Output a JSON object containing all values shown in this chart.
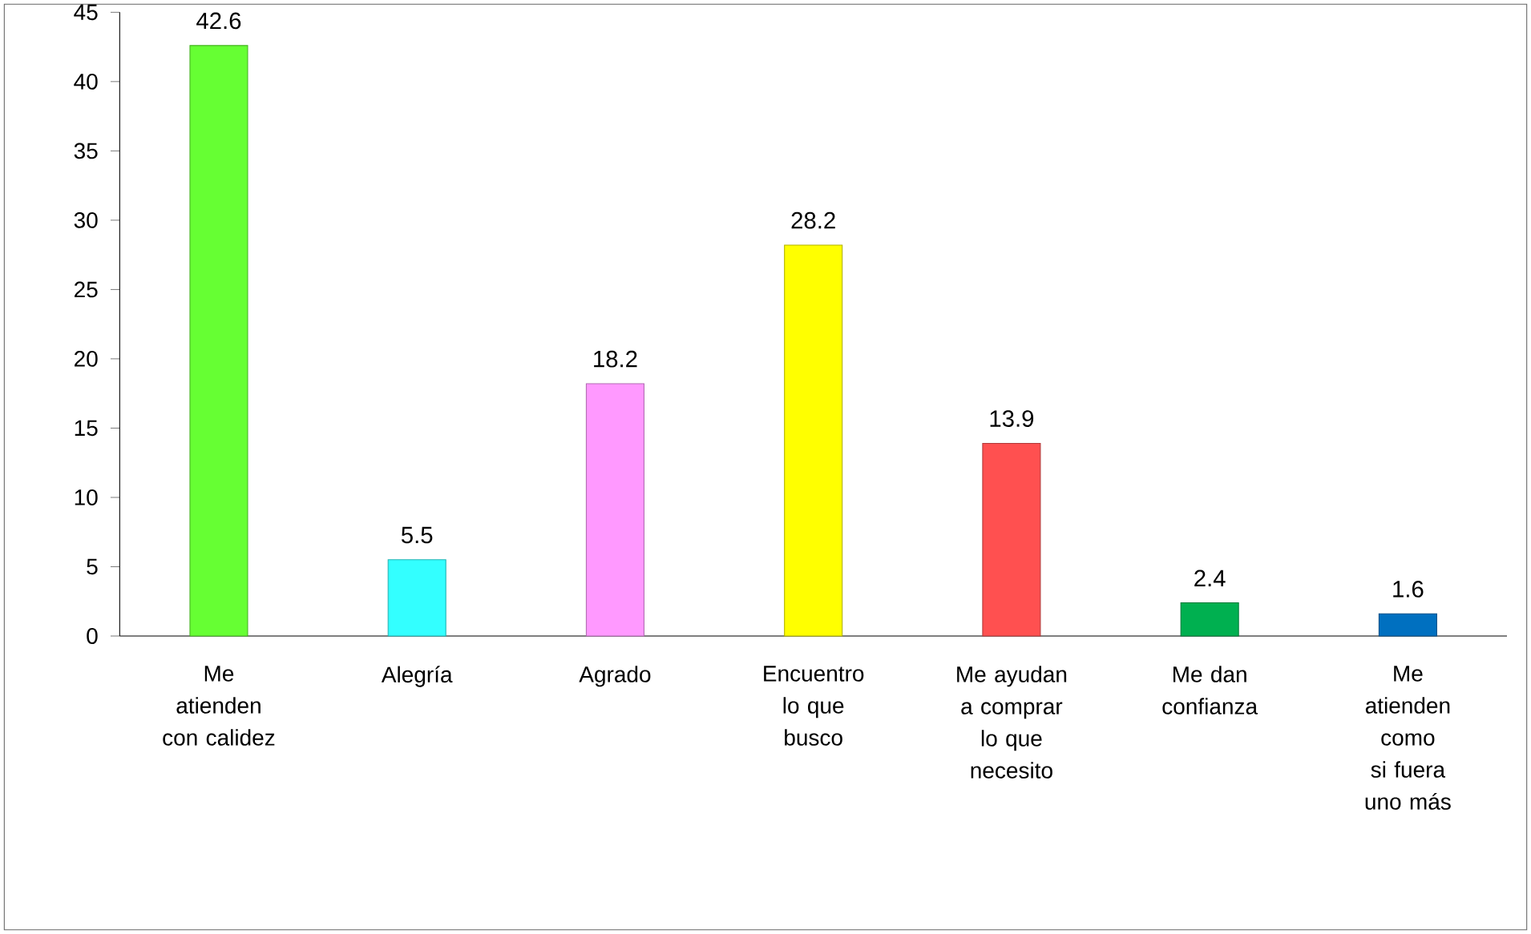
{
  "chart_data": {
    "type": "bar",
    "categories": [
      "Me atienden con calidez",
      "Alegría",
      "Agrado",
      "Encuentro lo que busco",
      "Me ayudan a comprar lo que necesito",
      "Me dan confianza",
      "Me atienden como si fuera uno más"
    ],
    "values": [
      42.6,
      5.5,
      18.2,
      28.2,
      13.9,
      2.4,
      1.6
    ],
    "colors": [
      "#66ff33",
      "#33ffff",
      "#ff99ff",
      "#ffff00",
      "#ff5050",
      "#00b050",
      "#0070c0"
    ],
    "ylim": [
      0,
      45
    ],
    "yticks": [
      0,
      5,
      10,
      15,
      20,
      25,
      30,
      35,
      40,
      45
    ],
    "data_labels": true,
    "grid": false
  }
}
